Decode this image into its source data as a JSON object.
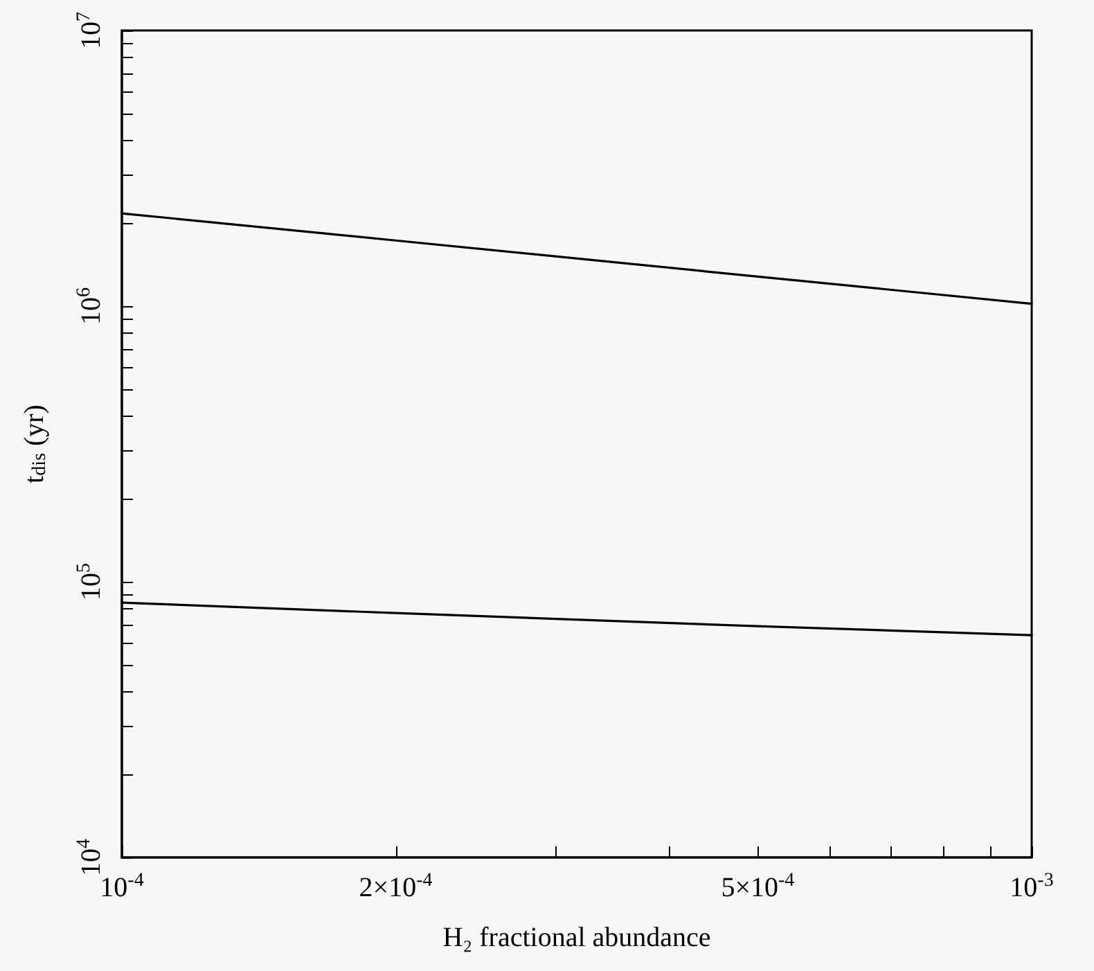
{
  "chart_data": {
    "type": "line",
    "xlabel": "H₂ fractional abundance",
    "ylabel": "t$_{dis}$ (yr)",
    "x": [
      0.0001,
      0.0002,
      0.0005,
      0.001
    ],
    "series": [
      {
        "color": "#000000",
        "values": [
          2170000,
          1730000,
          1280000,
          1020000
        ]
      },
      {
        "color": "#000000",
        "values": [
          84000,
          77000,
          69000,
          64000
        ]
      }
    ],
    "log": "xy",
    "marker": "none",
    "line_style": "solid",
    "xlim": [
      0.0001,
      0.001
    ],
    "ylim": [
      10000,
      10000000
    ],
    "xticks": [
      {
        "value": 0.0001,
        "label": "10$^{-4}$"
      },
      {
        "value": 0.0002,
        "label": "2×10$^{-4}$"
      },
      {
        "value": 0.0003,
        "label": null
      },
      {
        "value": 0.0004,
        "label": null
      },
      {
        "value": 0.0005,
        "label": "5×10$^{-4}$"
      },
      {
        "value": 0.0006,
        "label": null
      },
      {
        "value": 0.0007,
        "label": null
      },
      {
        "value": 0.0008,
        "label": null
      },
      {
        "value": 0.0009,
        "label": null
      },
      {
        "value": 0.001,
        "label": "10$^{-3}$"
      }
    ],
    "yticks": [
      {
        "value": 10000,
        "label": "10$^{4}$"
      },
      {
        "value": 20000,
        "label": null
      },
      {
        "value": 30000,
        "label": null
      },
      {
        "value": 40000,
        "label": null
      },
      {
        "value": 50000,
        "label": null
      },
      {
        "value": 60000,
        "label": null
      },
      {
        "value": 70000,
        "label": null
      },
      {
        "value": 80000,
        "label": null
      },
      {
        "value": 90000,
        "label": null
      },
      {
        "value": 100000,
        "label": "10$^{5}$"
      },
      {
        "value": 200000,
        "label": null
      },
      {
        "value": 300000,
        "label": null
      },
      {
        "value": 400000,
        "label": null
      },
      {
        "value": 500000,
        "label": null
      },
      {
        "value": 600000,
        "label": null
      },
      {
        "value": 700000,
        "label": null
      },
      {
        "value": 800000,
        "label": null
      },
      {
        "value": 900000,
        "label": null
      },
      {
        "value": 1000000,
        "label": "10$^{6}$"
      },
      {
        "value": 2000000,
        "label": null
      },
      {
        "value": 3000000,
        "label": null
      },
      {
        "value": 4000000,
        "label": null
      },
      {
        "value": 5000000,
        "label": null
      },
      {
        "value": 6000000,
        "label": null
      },
      {
        "value": 7000000,
        "label": null
      },
      {
        "value": 8000000,
        "label": null
      },
      {
        "value": 9000000,
        "label": null
      },
      {
        "value": 10000000,
        "label": "10$^{7}$"
      }
    ]
  }
}
